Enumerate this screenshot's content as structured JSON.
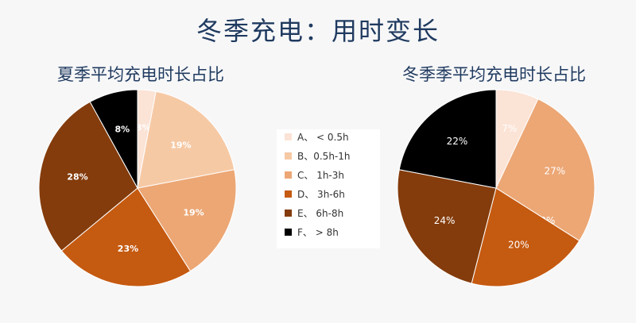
{
  "title": "冬季充电：用时变长",
  "legend": [
    {
      "label": "A、 < 0.5h",
      "color": "#fbe3d6"
    },
    {
      "label": "B、0.5h-1h",
      "color": "#f6c9a5"
    },
    {
      "label": "C、 1h-3h",
      "color": "#eca775"
    },
    {
      "label": "D、 3h-6h",
      "color": "#c55a11"
    },
    {
      "label": "E、 6h-8h",
      "color": "#843c0c"
    },
    {
      "label": "F、 > 8h",
      "color": "#000000"
    }
  ],
  "chart_data": [
    {
      "type": "pie",
      "title": "夏季平均充电时长占比",
      "categories": [
        "A、 < 0.5h",
        "B、0.5h-1h",
        "C、 1h-3h",
        "D、 3h-6h",
        "E、 6h-8h",
        "F、 > 8h"
      ],
      "values": [
        3,
        19,
        19,
        23,
        28,
        8
      ],
      "data_labels": [
        "3%",
        "19%",
        "19%",
        "23%",
        "28%",
        "8%"
      ],
      "colors": [
        "#fbe3d6",
        "#f6c9a5",
        "#eca775",
        "#c55a11",
        "#843c0c",
        "#000000"
      ]
    },
    {
      "type": "pie",
      "title": "冬季季平均充电时长占比",
      "categories": [
        "A、 < 0.5h",
        "B、0.5h-1h",
        "C、 1h-3h",
        "D、 3h-6h",
        "E、 6h-8h",
        "F、 > 8h"
      ],
      "values": [
        7,
        27,
        0,
        20,
        24,
        22
      ],
      "data_labels": [
        "7%",
        "27%",
        "0%",
        "20%",
        "24%",
        "22%"
      ],
      "colors": [
        "#fbe3d6",
        "#eca775",
        "#f6c9a5",
        "#c55a11",
        "#843c0c",
        "#000000"
      ]
    }
  ]
}
